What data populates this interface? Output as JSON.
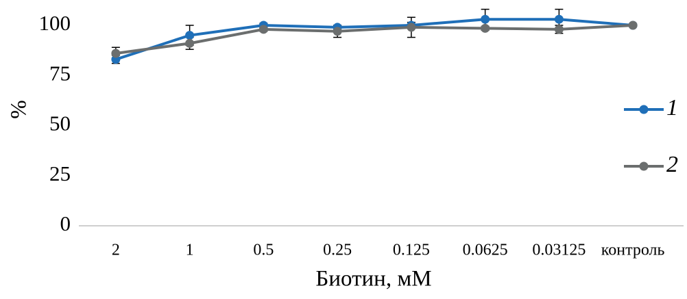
{
  "chart_data": {
    "type": "line",
    "x_label": "Биотин, мМ",
    "y_label": "%",
    "categories": [
      "2",
      "1",
      "0.5",
      "0.25",
      "0.125",
      "0.0625",
      "0.03125",
      "контроль"
    ],
    "series": [
      {
        "name": "1",
        "color": "#1f6fb8",
        "values": [
          83,
          95,
          100,
          99,
          100,
          103,
          103,
          100
        ],
        "errors": [
          2,
          5,
          1,
          1,
          1.5,
          5,
          5,
          0
        ]
      },
      {
        "name": "2",
        "color": "#6b6e6e",
        "values": [
          86,
          91,
          98,
          97,
          99,
          98.5,
          98,
          100
        ],
        "errors": [
          3,
          3,
          1,
          3,
          5,
          1,
          2,
          0
        ]
      }
    ],
    "ylim": [
      0,
      110
    ],
    "yticks": [
      0,
      25,
      50,
      75,
      100
    ],
    "legend": "right"
  }
}
